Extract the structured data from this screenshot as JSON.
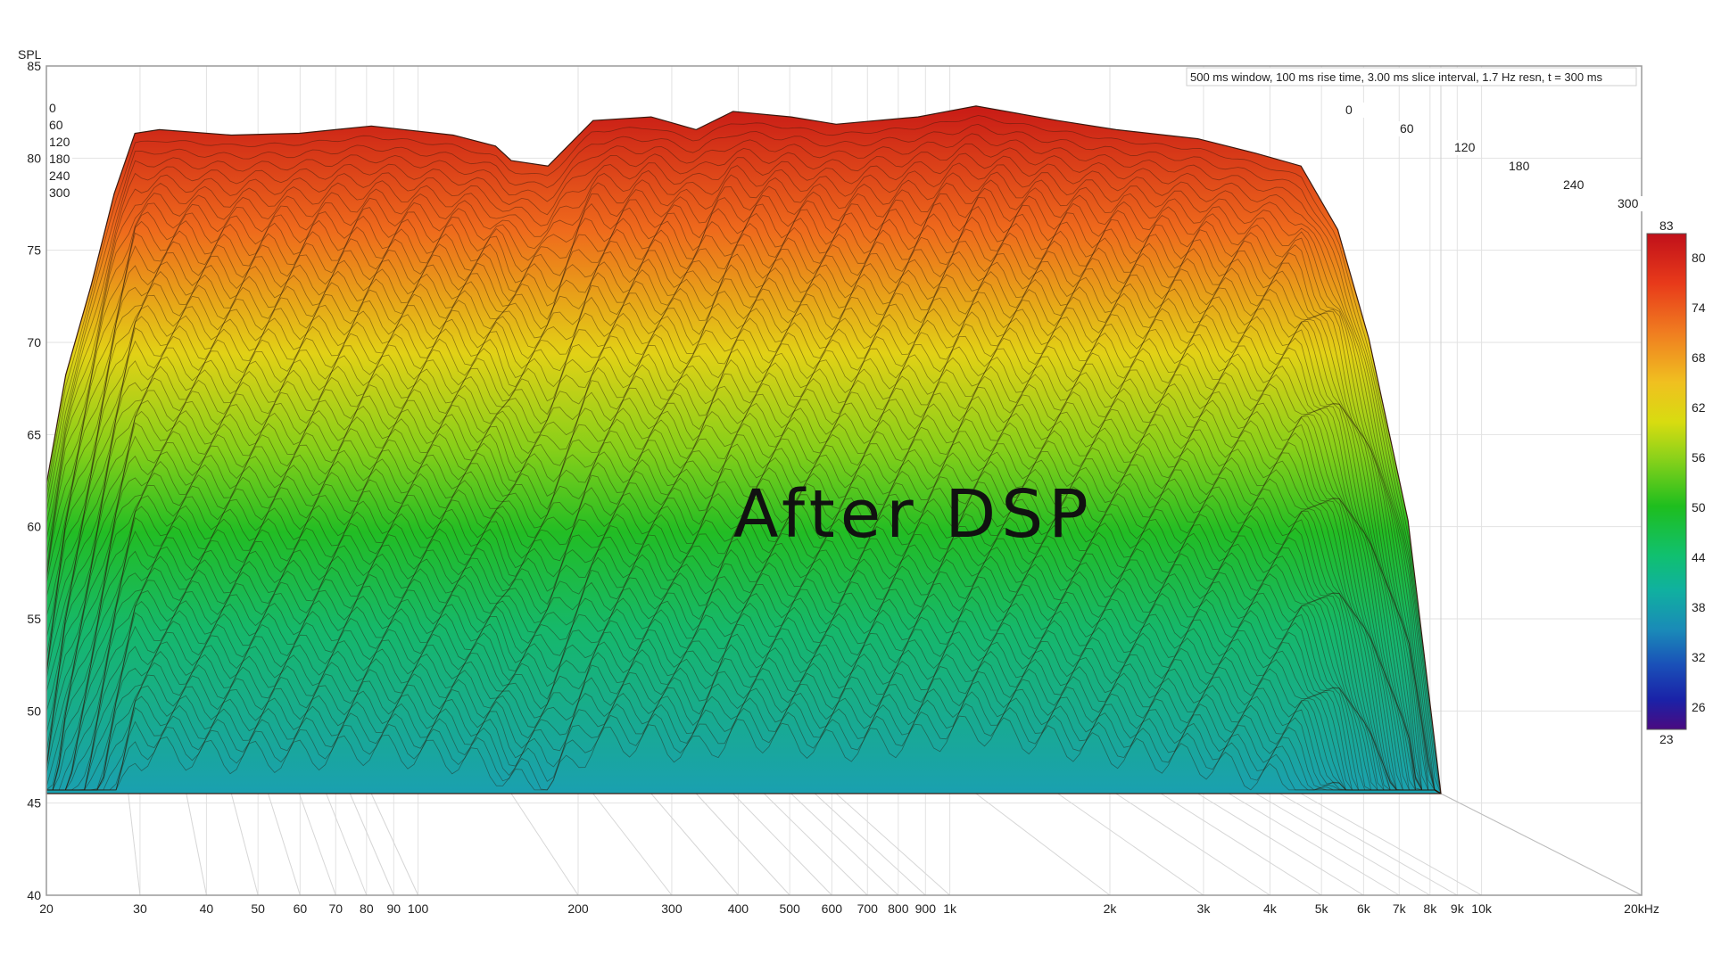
{
  "chart_data": {
    "type": "waterfall",
    "title": "",
    "overlay_text": "After DSP",
    "ylabel": "SPL",
    "info_text": "500 ms window, 100 ms rise time, 3.00 ms slice interval, 1.7 Hz resn, t = 300 ms",
    "x_scale": "log",
    "xlim": [
      20,
      20000
    ],
    "ylim": [
      40,
      85
    ],
    "x_ticks": [
      {
        "v": 20,
        "label": "20"
      },
      {
        "v": 30,
        "label": "30"
      },
      {
        "v": 40,
        "label": "40"
      },
      {
        "v": 50,
        "label": "50"
      },
      {
        "v": 60,
        "label": "60"
      },
      {
        "v": 70,
        "label": "70"
      },
      {
        "v": 80,
        "label": "80"
      },
      {
        "v": 90,
        "label": "90"
      },
      {
        "v": 100,
        "label": "100"
      },
      {
        "v": 200,
        "label": "200"
      },
      {
        "v": 300,
        "label": "300"
      },
      {
        "v": 400,
        "label": "400"
      },
      {
        "v": 500,
        "label": "500"
      },
      {
        "v": 600,
        "label": "600"
      },
      {
        "v": 700,
        "label": "700"
      },
      {
        "v": 800,
        "label": "800"
      },
      {
        "v": 900,
        "label": "900"
      },
      {
        "v": 1000,
        "label": "1k"
      },
      {
        "v": 2000,
        "label": "2k"
      },
      {
        "v": 3000,
        "label": "3k"
      },
      {
        "v": 4000,
        "label": "4k"
      },
      {
        "v": 5000,
        "label": "5k"
      },
      {
        "v": 6000,
        "label": "6k"
      },
      {
        "v": 7000,
        "label": "7k"
      },
      {
        "v": 8000,
        "label": "8k"
      },
      {
        "v": 9000,
        "label": "9k"
      },
      {
        "v": 10000,
        "label": "10k"
      },
      {
        "v": 20000,
        "label": "20kHz"
      }
    ],
    "y_ticks": [
      85,
      80,
      75,
      70,
      65,
      60,
      55,
      50,
      45,
      40
    ],
    "time_ms": {
      "axis_ticks": [
        "0",
        "60",
        "120",
        "180",
        "240",
        "300"
      ],
      "left_labels": [
        "0",
        "60",
        "120",
        "180",
        "240",
        "300"
      ]
    },
    "front_slice_t0": [
      {
        "f": 20,
        "spl": 62
      },
      {
        "f": 22,
        "spl": 68
      },
      {
        "f": 25,
        "spl": 73
      },
      {
        "f": 28,
        "spl": 78
      },
      {
        "f": 31,
        "spl": 81.3
      },
      {
        "f": 35,
        "spl": 81.5
      },
      {
        "f": 50,
        "spl": 81.2
      },
      {
        "f": 70,
        "spl": 81.3
      },
      {
        "f": 100,
        "spl": 81.7
      },
      {
        "f": 150,
        "spl": 81.2
      },
      {
        "f": 185,
        "spl": 80.6
      },
      {
        "f": 200,
        "spl": 79.8
      },
      {
        "f": 240,
        "spl": 79.5
      },
      {
        "f": 300,
        "spl": 82.0
      },
      {
        "f": 400,
        "spl": 82.2
      },
      {
        "f": 500,
        "spl": 81.5
      },
      {
        "f": 600,
        "spl": 82.5
      },
      {
        "f": 800,
        "spl": 82.2
      },
      {
        "f": 1000,
        "spl": 81.8
      },
      {
        "f": 1500,
        "spl": 82.2
      },
      {
        "f": 2000,
        "spl": 82.8
      },
      {
        "f": 3000,
        "spl": 82.0
      },
      {
        "f": 4000,
        "spl": 81.5
      },
      {
        "f": 6000,
        "spl": 81.0
      },
      {
        "f": 8000,
        "spl": 80.2
      },
      {
        "f": 10000,
        "spl": 79.5
      },
      {
        "f": 12000,
        "spl": 76
      },
      {
        "f": 14000,
        "spl": 70
      },
      {
        "f": 17000,
        "spl": 60
      },
      {
        "f": 20000,
        "spl": 45
      }
    ],
    "color_scale": {
      "max_label": "83",
      "min_label": "23",
      "ticks": [
        "80",
        "74",
        "68",
        "62",
        "56",
        "50",
        "44",
        "38",
        "32",
        "26"
      ],
      "colors": [
        "#c0101a",
        "#e83a1a",
        "#f07d20",
        "#f0c020",
        "#d8dc10",
        "#8ed21a",
        "#1ebe1e",
        "#10c070",
        "#10b0a0",
        "#1a8ab8",
        "#1a50b8",
        "#1a22a8",
        "#3a1088",
        "#4a0a80"
      ]
    },
    "grid": true
  }
}
